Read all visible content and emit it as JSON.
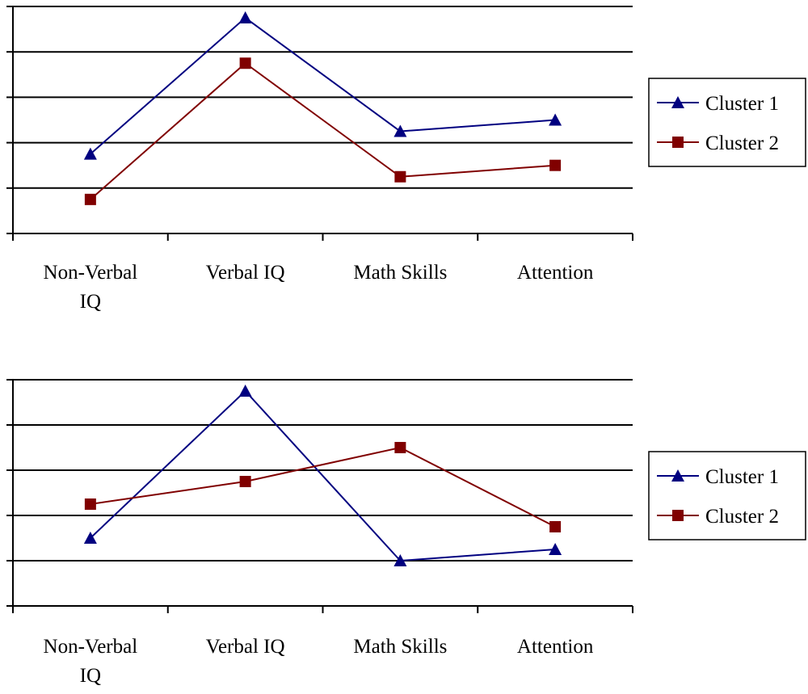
{
  "colors": {
    "cluster1": "#000080",
    "cluster2": "#800000",
    "grid": "#000000",
    "background": "#ffffff"
  },
  "chart_data": [
    {
      "type": "line",
      "categories": [
        [
          "Non-Verbal",
          "IQ"
        ],
        [
          "Verbal IQ"
        ],
        [
          "Math Skills"
        ],
        [
          "Attention"
        ]
      ],
      "ylim": [
        0,
        5
      ],
      "grid": true,
      "legend": "right",
      "series": [
        {
          "name": "Cluster 1",
          "marker": "triangle",
          "values": [
            1.75,
            4.75,
            2.25,
            2.5
          ]
        },
        {
          "name": "Cluster 2",
          "marker": "square",
          "values": [
            0.75,
            3.75,
            1.25,
            1.5
          ]
        }
      ]
    },
    {
      "type": "line",
      "categories": [
        [
          "Non-Verbal",
          "IQ"
        ],
        [
          "Verbal IQ"
        ],
        [
          "Math Skills"
        ],
        [
          "Attention"
        ]
      ],
      "ylim": [
        0,
        5
      ],
      "grid": true,
      "legend": "right",
      "series": [
        {
          "name": "Cluster 1",
          "marker": "triangle",
          "values": [
            1.5,
            4.75,
            1.0,
            1.25
          ]
        },
        {
          "name": "Cluster 2",
          "marker": "square",
          "values": [
            2.25,
            2.75,
            3.5,
            1.75
          ]
        }
      ]
    }
  ]
}
